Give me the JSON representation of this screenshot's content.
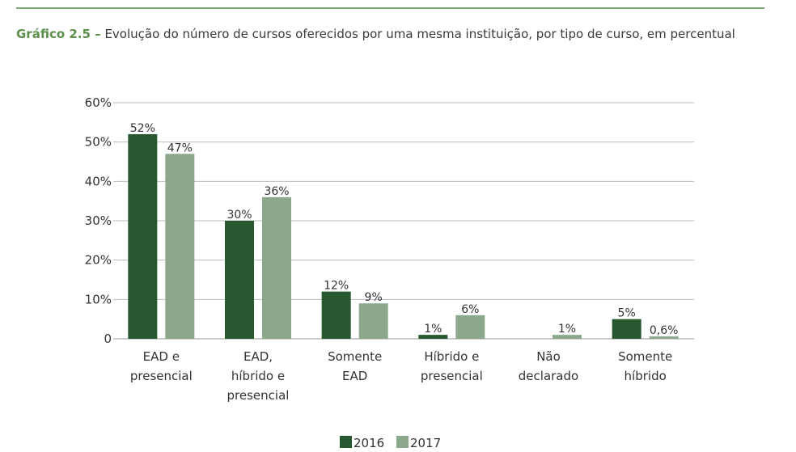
{
  "caption": {
    "prefix": "Gráfico 2.5 –",
    "text": "Evolução do número de cursos oferecidos por uma mesma instituição, por tipo de curso, em percentual"
  },
  "colors": {
    "series_2016": "#27582f",
    "series_2017": "#8ba88d",
    "grid": "#bbbbbb"
  },
  "chart_data": {
    "type": "bar",
    "categories": [
      [
        "EAD e",
        "presencial"
      ],
      [
        "EAD,",
        "híbrido e",
        "presencial"
      ],
      [
        "Somente",
        "EAD"
      ],
      [
        "Híbrido e",
        "presencial"
      ],
      [
        "Não",
        "declarado"
      ],
      [
        "Somente",
        "híbrido"
      ]
    ],
    "series": [
      {
        "name": "2016",
        "values": [
          52,
          30,
          12,
          1,
          0,
          5
        ],
        "labels": [
          "52%",
          "30%",
          "12%",
          "1%",
          "",
          "5%"
        ]
      },
      {
        "name": "2017",
        "values": [
          47,
          36,
          9,
          6,
          1,
          0.6
        ],
        "labels": [
          "47%",
          "36%",
          "9%",
          "6%",
          "1%",
          "0,6%"
        ]
      }
    ],
    "y_ticks": [
      {
        "value": 0,
        "label": "0"
      },
      {
        "value": 10,
        "label": "10%"
      },
      {
        "value": 20,
        "label": "20%"
      },
      {
        "value": 30,
        "label": "30%"
      },
      {
        "value": 40,
        "label": "40%"
      },
      {
        "value": 50,
        "label": "50%"
      },
      {
        "value": 60,
        "label": "60%"
      }
    ],
    "ylim": [
      0,
      60
    ],
    "grid": true,
    "legend_position": "bottom-center"
  }
}
